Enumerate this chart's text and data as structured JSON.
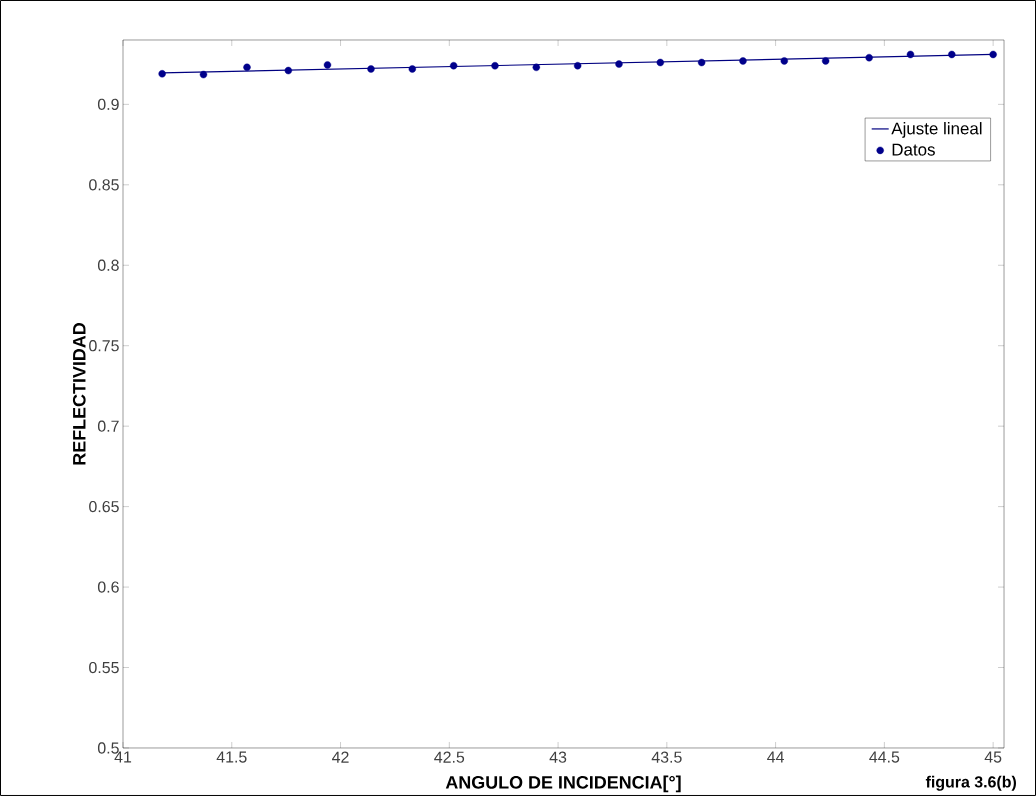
{
  "chart_data": {
    "type": "scatter",
    "xlabel": "ANGULO DE INCIDENCIA[°]",
    "ylabel": "REFLECTIVIDAD",
    "annotations": [
      "figura 3.6(b)"
    ],
    "series": [
      {
        "name": "Ajuste lineal",
        "type": "line",
        "color": "#000080",
        "x": [
          41.18,
          45.0
        ],
        "values": [
          0.9195,
          0.931
        ],
        "marker": "none"
      },
      {
        "name": "Datos",
        "color": "#00008b",
        "marker": "star",
        "x": [
          41.18,
          41.37,
          41.57,
          41.76,
          41.94,
          42.14,
          42.33,
          42.52,
          42.71,
          42.9,
          43.09,
          43.28,
          43.47,
          43.66,
          43.85,
          44.04,
          44.23,
          44.43,
          44.62,
          44.81,
          45.0
        ],
        "values": [
          0.919,
          0.9185,
          0.923,
          0.921,
          0.9245,
          0.922,
          0.922,
          0.924,
          0.924,
          0.923,
          0.924,
          0.925,
          0.926,
          0.926,
          0.927,
          0.927,
          0.927,
          0.929,
          0.931,
          0.931,
          0.931
        ]
      }
    ],
    "xlim": [
      41,
      45.05
    ],
    "ylim": [
      0.5,
      0.94
    ],
    "xticks": [
      41,
      41.5,
      42,
      42.5,
      43,
      43.5,
      44,
      44.5,
      45
    ],
    "yticks": [
      0.5,
      0.55,
      0.6,
      0.65,
      0.7,
      0.75,
      0.8,
      0.85,
      0.9
    ],
    "grid": false,
    "legend": "top right"
  }
}
